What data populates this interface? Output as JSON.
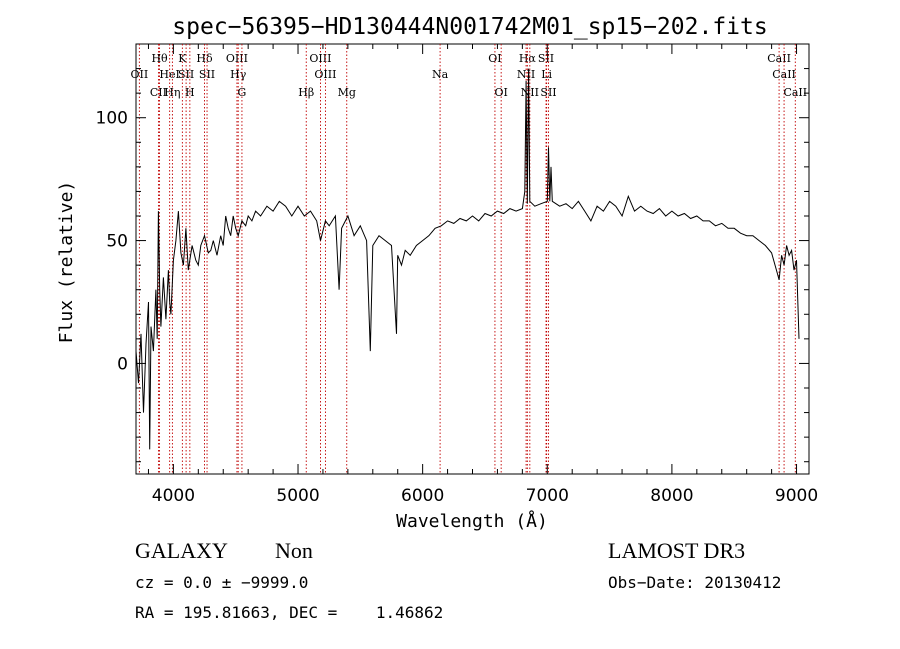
{
  "chart_data": {
    "type": "line",
    "title": "spec−56395−HD130444N001742M01_sp15−202.fits",
    "xlabel": "Wavelength (Å)",
    "ylabel": "Flux (relative)",
    "xlim": [
      3700,
      9100
    ],
    "ylim": [
      -45,
      130
    ],
    "x_ticks": [
      4000,
      5000,
      6000,
      7000,
      8000,
      9000
    ],
    "y_ticks": [
      0,
      50,
      100
    ],
    "grid": false,
    "series": [
      {
        "name": "spectrum",
        "points": [
          [
            3700,
            5
          ],
          [
            3720,
            -8
          ],
          [
            3740,
            12
          ],
          [
            3760,
            -20
          ],
          [
            3780,
            8
          ],
          [
            3800,
            25
          ],
          [
            3810,
            -35
          ],
          [
            3820,
            15
          ],
          [
            3840,
            5
          ],
          [
            3860,
            30
          ],
          [
            3870,
            10
          ],
          [
            3880,
            62
          ],
          [
            3890,
            30
          ],
          [
            3900,
            15
          ],
          [
            3920,
            35
          ],
          [
            3940,
            18
          ],
          [
            3960,
            38
          ],
          [
            3970,
            25
          ],
          [
            3980,
            20
          ],
          [
            4000,
            42
          ],
          [
            4020,
            50
          ],
          [
            4040,
            62
          ],
          [
            4060,
            45
          ],
          [
            4080,
            40
          ],
          [
            4100,
            55
          ],
          [
            4120,
            38
          ],
          [
            4150,
            48
          ],
          [
            4180,
            42
          ],
          [
            4200,
            40
          ],
          [
            4220,
            48
          ],
          [
            4250,
            52
          ],
          [
            4280,
            45
          ],
          [
            4300,
            46
          ],
          [
            4320,
            50
          ],
          [
            4350,
            44
          ],
          [
            4380,
            52
          ],
          [
            4400,
            48
          ],
          [
            4420,
            60
          ],
          [
            4440,
            55
          ],
          [
            4460,
            52
          ],
          [
            4480,
            60
          ],
          [
            4500,
            55
          ],
          [
            4520,
            52
          ],
          [
            4550,
            58
          ],
          [
            4580,
            56
          ],
          [
            4600,
            60
          ],
          [
            4630,
            58
          ],
          [
            4660,
            62
          ],
          [
            4700,
            60
          ],
          [
            4750,
            64
          ],
          [
            4800,
            62
          ],
          [
            4850,
            66
          ],
          [
            4900,
            64
          ],
          [
            4950,
            60
          ],
          [
            5000,
            64
          ],
          [
            5050,
            60
          ],
          [
            5100,
            62
          ],
          [
            5150,
            58
          ],
          [
            5180,
            50
          ],
          [
            5220,
            58
          ],
          [
            5250,
            56
          ],
          [
            5300,
            60
          ],
          [
            5330,
            30
          ],
          [
            5350,
            55
          ],
          [
            5400,
            60
          ],
          [
            5450,
            52
          ],
          [
            5500,
            56
          ],
          [
            5550,
            50
          ],
          [
            5580,
            5
          ],
          [
            5600,
            48
          ],
          [
            5650,
            52
          ],
          [
            5700,
            50
          ],
          [
            5750,
            48
          ],
          [
            5790,
            12
          ],
          [
            5800,
            44
          ],
          [
            5830,
            40
          ],
          [
            5860,
            46
          ],
          [
            5900,
            44
          ],
          [
            5950,
            48
          ],
          [
            6000,
            50
          ],
          [
            6050,
            52
          ],
          [
            6100,
            55
          ],
          [
            6150,
            56
          ],
          [
            6200,
            58
          ],
          [
            6250,
            57
          ],
          [
            6300,
            59
          ],
          [
            6350,
            58
          ],
          [
            6400,
            60
          ],
          [
            6450,
            58
          ],
          [
            6500,
            61
          ],
          [
            6550,
            60
          ],
          [
            6600,
            62
          ],
          [
            6650,
            61
          ],
          [
            6700,
            63
          ],
          [
            6750,
            62
          ],
          [
            6800,
            63
          ],
          [
            6820,
            70
          ],
          [
            6830,
            115
          ],
          [
            6840,
            65
          ],
          [
            6850,
            120
          ],
          [
            6860,
            66
          ],
          [
            6900,
            64
          ],
          [
            6950,
            65
          ],
          [
            7000,
            66
          ],
          [
            7010,
            88
          ],
          [
            7020,
            66
          ],
          [
            7030,
            80
          ],
          [
            7040,
            66
          ],
          [
            7100,
            64
          ],
          [
            7150,
            65
          ],
          [
            7200,
            63
          ],
          [
            7250,
            66
          ],
          [
            7300,
            62
          ],
          [
            7350,
            58
          ],
          [
            7400,
            64
          ],
          [
            7450,
            62
          ],
          [
            7500,
            66
          ],
          [
            7550,
            64
          ],
          [
            7600,
            60
          ],
          [
            7650,
            68
          ],
          [
            7700,
            62
          ],
          [
            7750,
            64
          ],
          [
            7800,
            62
          ],
          [
            7850,
            61
          ],
          [
            7900,
            63
          ],
          [
            7950,
            60
          ],
          [
            8000,
            62
          ],
          [
            8050,
            60
          ],
          [
            8100,
            61
          ],
          [
            8150,
            59
          ],
          [
            8200,
            60
          ],
          [
            8250,
            58
          ],
          [
            8300,
            58
          ],
          [
            8350,
            56
          ],
          [
            8400,
            57
          ],
          [
            8450,
            55
          ],
          [
            8500,
            55
          ],
          [
            8550,
            53
          ],
          [
            8600,
            52
          ],
          [
            8650,
            52
          ],
          [
            8700,
            50
          ],
          [
            8750,
            48
          ],
          [
            8800,
            45
          ],
          [
            8850,
            36
          ],
          [
            8860,
            34
          ],
          [
            8880,
            44
          ],
          [
            8900,
            40
          ],
          [
            8920,
            48
          ],
          [
            8940,
            44
          ],
          [
            8960,
            46
          ],
          [
            8980,
            38
          ],
          [
            9000,
            42
          ],
          [
            9020,
            10
          ]
        ]
      }
    ],
    "lines": [
      {
        "label": "OII",
        "x": 3727,
        "row": 2
      },
      {
        "label": "CII",
        "x": 3880,
        "row": 3
      },
      {
        "label": "Hθ",
        "x": 3889,
        "row": 1
      },
      {
        "label": "HeI",
        "x": 3970,
        "row": 2
      },
      {
        "label": "Hη",
        "x": 3992,
        "row": 3
      },
      {
        "label": "K",
        "x": 4072,
        "row": 1
      },
      {
        "label": "SII",
        "x": 4102,
        "row": 2
      },
      {
        "label": "H",
        "x": 4132,
        "row": 3
      },
      {
        "label": "Hδ",
        "x": 4250,
        "row": 1
      },
      {
        "label": "SII",
        "x": 4270,
        "row": 2
      },
      {
        "label": "OIII",
        "x": 4510,
        "row": 1
      },
      {
        "label": "Hγ",
        "x": 4520,
        "row": 2
      },
      {
        "label": "G",
        "x": 4550,
        "row": 3
      },
      {
        "label": "Hβ",
        "x": 5066,
        "row": 3
      },
      {
        "label": "OIII",
        "x": 5180,
        "row": 1
      },
      {
        "label": "OIII",
        "x": 5220,
        "row": 2
      },
      {
        "label": "Mg",
        "x": 5391,
        "row": 3
      },
      {
        "label": "Na",
        "x": 6140,
        "row": 2
      },
      {
        "label": "OI",
        "x": 6580,
        "row": 1
      },
      {
        "label": "OI",
        "x": 6630,
        "row": 3
      },
      {
        "label": "Hα",
        "x": 6840,
        "row": 1
      },
      {
        "label": "NII",
        "x": 6830,
        "row": 2
      },
      {
        "label": "NII",
        "x": 6860,
        "row": 3
      },
      {
        "label": "SII",
        "x": 6990,
        "row": 1
      },
      {
        "label": "Li",
        "x": 6995,
        "row": 2
      },
      {
        "label": "SII",
        "x": 7010,
        "row": 3
      },
      {
        "label": "CaII",
        "x": 8860,
        "row": 1
      },
      {
        "label": "CaII",
        "x": 8900,
        "row": 2
      },
      {
        "label": "CaII",
        "x": 8990,
        "row": 3
      }
    ]
  },
  "info": {
    "class": "GALAXY",
    "subclass": "Non",
    "survey": "LAMOST DR3",
    "cz": "cz = 0.0 ± −9999.0",
    "obs_date": "Obs−Date: 20130412",
    "coords": "RA = 195.81663, DEC =    1.46862"
  }
}
